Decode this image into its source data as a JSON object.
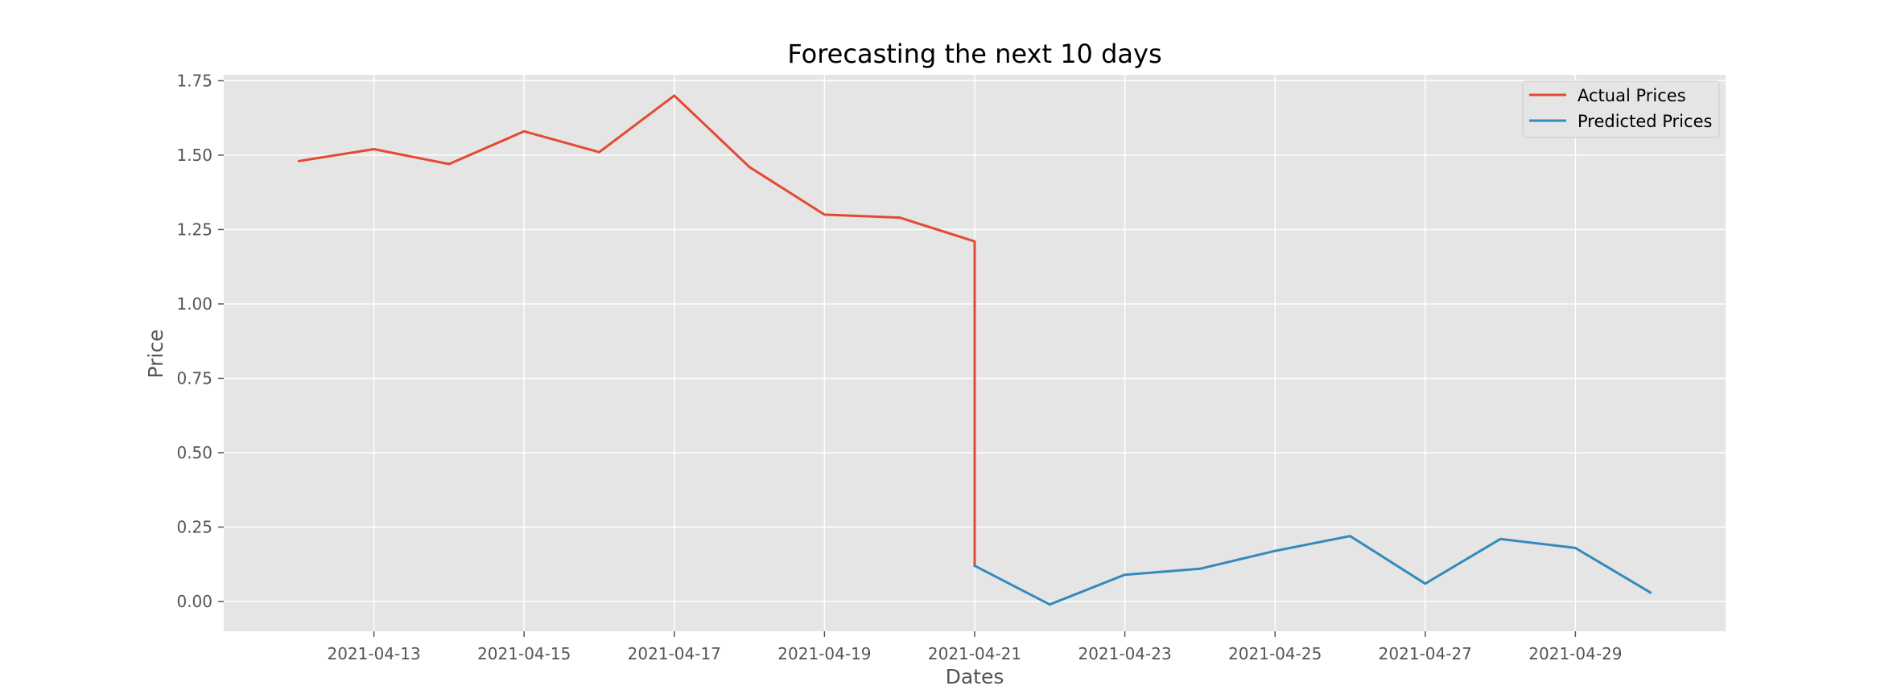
{
  "chart_data": {
    "type": "line",
    "title": "Forecasting the next 10 days",
    "xlabel": "Dates",
    "ylabel": "Price",
    "xlim": [
      "2021-04-11",
      "2021-05-01"
    ],
    "ylim": [
      -0.1,
      1.77
    ],
    "grid": true,
    "legend_position": "top-right",
    "xticks": [
      "2021-04-13",
      "2021-04-15",
      "2021-04-17",
      "2021-04-19",
      "2021-04-21",
      "2021-04-23",
      "2021-04-25",
      "2021-04-27",
      "2021-04-29"
    ],
    "yticks": [
      0.0,
      0.25,
      0.5,
      0.75,
      1.0,
      1.25,
      1.5,
      1.75
    ],
    "ytick_labels": [
      "0.00",
      "0.25",
      "0.50",
      "0.75",
      "1.00",
      "1.25",
      "1.50",
      "1.75"
    ],
    "series": [
      {
        "name": "Actual Prices",
        "color": "#e24a33",
        "x": [
          "2021-04-12",
          "2021-04-13",
          "2021-04-14",
          "2021-04-15",
          "2021-04-16",
          "2021-04-17",
          "2021-04-18",
          "2021-04-19",
          "2021-04-20",
          "2021-04-21",
          "2021-04-21"
        ],
        "values": [
          1.48,
          1.52,
          1.47,
          1.58,
          1.51,
          1.7,
          1.46,
          1.3,
          1.29,
          1.21,
          0.12
        ]
      },
      {
        "name": "Predicted Prices",
        "color": "#348abd",
        "x": [
          "2021-04-21",
          "2021-04-22",
          "2021-04-23",
          "2021-04-24",
          "2021-04-25",
          "2021-04-26",
          "2021-04-27",
          "2021-04-28",
          "2021-04-29",
          "2021-04-30"
        ],
        "values": [
          0.12,
          -0.01,
          0.09,
          0.11,
          0.17,
          0.22,
          0.06,
          0.21,
          0.18,
          0.03
        ]
      }
    ]
  }
}
